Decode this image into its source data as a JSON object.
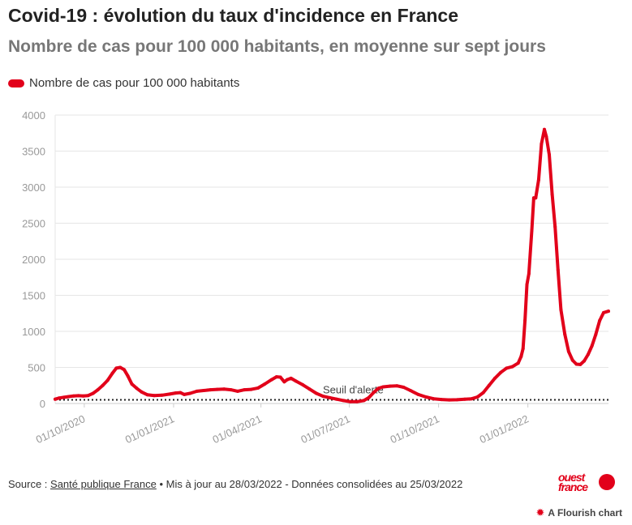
{
  "header": {
    "title": "Covid-19 : évolution du taux d'incidence en France",
    "subtitle": "Nombre de cas pour 100 000 habitants, en moyenne sur sept jours"
  },
  "colors": {
    "series": "#e2001a",
    "grid": "#e6e6e6",
    "axis_text": "#999999",
    "threshold": "#222222"
  },
  "chart_data": {
    "type": "line",
    "title": "Covid-19 : évolution du taux d'incidence en France",
    "subtitle": "Nombre de cas pour 100 000 habitants, en moyenne sur sept jours",
    "xlabel": "",
    "ylabel": "",
    "ylim": [
      0,
      4000
    ],
    "y_ticks": [
      0,
      500,
      1000,
      1500,
      2000,
      2500,
      3000,
      3500,
      4000
    ],
    "x_range": [
      "2020-09-01",
      "2022-03-25"
    ],
    "x_ticks": [
      {
        "date": "2020-10-01",
        "label": "01/10/2020"
      },
      {
        "date": "2021-01-01",
        "label": "01/01/2021"
      },
      {
        "date": "2021-04-01",
        "label": "01/04/2021"
      },
      {
        "date": "2021-07-01",
        "label": "01/07/2021"
      },
      {
        "date": "2021-10-01",
        "label": "01/10/2021"
      },
      {
        "date": "2022-01-01",
        "label": "01/01/2022"
      }
    ],
    "grid": true,
    "legend": "top-left",
    "series": [
      {
        "name": "Nombre de cas pour 100 000 habitants",
        "points": [
          [
            "2020-09-01",
            60
          ],
          [
            "2020-09-05",
            75
          ],
          [
            "2020-09-10",
            85
          ],
          [
            "2020-09-15",
            95
          ],
          [
            "2020-09-20",
            105
          ],
          [
            "2020-09-25",
            108
          ],
          [
            "2020-09-30",
            105
          ],
          [
            "2020-10-05",
            110
          ],
          [
            "2020-10-10",
            140
          ],
          [
            "2020-10-15",
            190
          ],
          [
            "2020-10-20",
            250
          ],
          [
            "2020-10-25",
            320
          ],
          [
            "2020-10-30",
            420
          ],
          [
            "2020-11-03",
            490
          ],
          [
            "2020-11-07",
            500
          ],
          [
            "2020-11-11",
            470
          ],
          [
            "2020-11-15",
            380
          ],
          [
            "2020-11-19",
            270
          ],
          [
            "2020-11-24",
            210
          ],
          [
            "2020-11-29",
            160
          ],
          [
            "2020-12-05",
            120
          ],
          [
            "2020-12-12",
            110
          ],
          [
            "2020-12-20",
            115
          ],
          [
            "2020-12-28",
            130
          ],
          [
            "2021-01-03",
            145
          ],
          [
            "2021-01-08",
            150
          ],
          [
            "2021-01-12",
            125
          ],
          [
            "2021-01-18",
            140
          ],
          [
            "2021-01-25",
            170
          ],
          [
            "2021-02-01",
            180
          ],
          [
            "2021-02-08",
            190
          ],
          [
            "2021-02-15",
            195
          ],
          [
            "2021-02-22",
            200
          ],
          [
            "2021-03-01",
            190
          ],
          [
            "2021-03-08",
            170
          ],
          [
            "2021-03-15",
            190
          ],
          [
            "2021-03-22",
            195
          ],
          [
            "2021-03-29",
            215
          ],
          [
            "2021-04-05",
            270
          ],
          [
            "2021-04-12",
            330
          ],
          [
            "2021-04-17",
            370
          ],
          [
            "2021-04-21",
            365
          ],
          [
            "2021-04-25",
            300
          ],
          [
            "2021-04-28",
            330
          ],
          [
            "2021-05-02",
            350
          ],
          [
            "2021-05-07",
            310
          ],
          [
            "2021-05-14",
            260
          ],
          [
            "2021-05-21",
            200
          ],
          [
            "2021-05-28",
            140
          ],
          [
            "2021-06-04",
            100
          ],
          [
            "2021-06-11",
            80
          ],
          [
            "2021-06-18",
            60
          ],
          [
            "2021-06-25",
            40
          ],
          [
            "2021-07-02",
            25
          ],
          [
            "2021-07-09",
            25
          ],
          [
            "2021-07-16",
            40
          ],
          [
            "2021-07-21",
            80
          ],
          [
            "2021-07-26",
            150
          ],
          [
            "2021-07-31",
            210
          ],
          [
            "2021-08-05",
            230
          ],
          [
            "2021-08-12",
            240
          ],
          [
            "2021-08-19",
            245
          ],
          [
            "2021-08-26",
            225
          ],
          [
            "2021-09-02",
            180
          ],
          [
            "2021-09-10",
            125
          ],
          [
            "2021-09-18",
            90
          ],
          [
            "2021-09-26",
            65
          ],
          [
            "2021-10-04",
            55
          ],
          [
            "2021-10-12",
            50
          ],
          [
            "2021-10-20",
            52
          ],
          [
            "2021-10-28",
            58
          ],
          [
            "2021-11-04",
            65
          ],
          [
            "2021-11-10",
            90
          ],
          [
            "2021-11-16",
            150
          ],
          [
            "2021-11-22",
            250
          ],
          [
            "2021-11-28",
            350
          ],
          [
            "2021-12-04",
            430
          ],
          [
            "2021-12-10",
            490
          ],
          [
            "2021-12-16",
            510
          ],
          [
            "2021-12-22",
            560
          ],
          [
            "2021-12-25",
            650
          ],
          [
            "2021-12-27",
            760
          ],
          [
            "2021-12-29",
            1150
          ],
          [
            "2021-12-31",
            1650
          ],
          [
            "2022-01-02",
            1800
          ],
          [
            "2022-01-05",
            2400
          ],
          [
            "2022-01-07",
            2850
          ],
          [
            "2022-01-09",
            2850
          ],
          [
            "2022-01-12",
            3100
          ],
          [
            "2022-01-15",
            3600
          ],
          [
            "2022-01-18",
            3800
          ],
          [
            "2022-01-20",
            3700
          ],
          [
            "2022-01-23",
            3450
          ],
          [
            "2022-01-26",
            2900
          ],
          [
            "2022-01-29",
            2450
          ],
          [
            "2022-02-01",
            1850
          ],
          [
            "2022-02-04",
            1300
          ],
          [
            "2022-02-08",
            960
          ],
          [
            "2022-02-12",
            720
          ],
          [
            "2022-02-16",
            600
          ],
          [
            "2022-02-20",
            545
          ],
          [
            "2022-02-24",
            540
          ],
          [
            "2022-02-28",
            590
          ],
          [
            "2022-03-04",
            680
          ],
          [
            "2022-03-08",
            800
          ],
          [
            "2022-03-12",
            960
          ],
          [
            "2022-03-16",
            1150
          ],
          [
            "2022-03-20",
            1260
          ],
          [
            "2022-03-25",
            1280
          ]
        ]
      }
    ],
    "annotations": [
      {
        "label": "Seuil d'alerte",
        "y": 50,
        "style": "dotted"
      }
    ]
  },
  "footer": {
    "source_prefix": "Source : ",
    "source_link": "Santé publique France",
    "bullet": " • ",
    "updated": "Mis à jour au 28/03/2022 - Données consolidées au 25/03/2022"
  },
  "branding": {
    "logo_line1": "ouest",
    "logo_line2": "france",
    "flourish_icon": "flourish-burst-icon",
    "flourish_label": "A Flourish chart"
  }
}
